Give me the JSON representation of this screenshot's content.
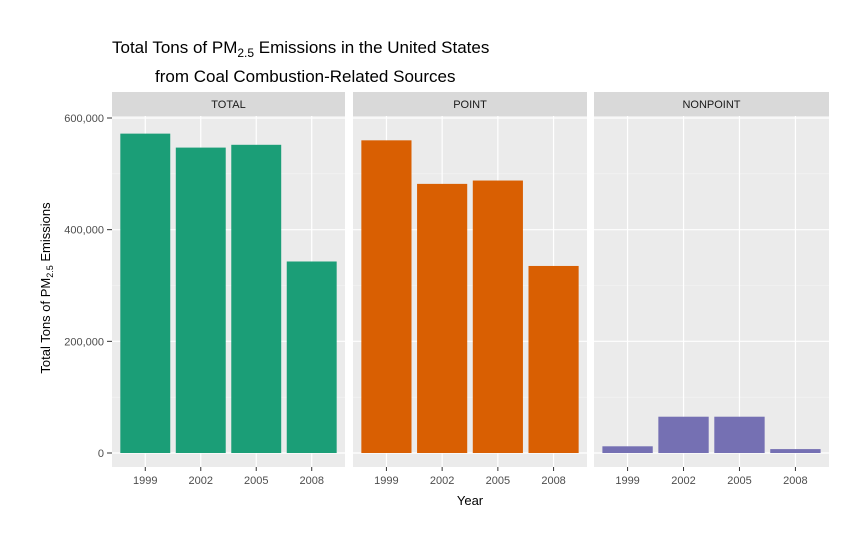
{
  "chart_data": {
    "type": "bar",
    "title_line1_prefix": "Total Tons of PM",
    "title_line1_sub": "2.5",
    "title_line1_suffix": " Emissions in the United States",
    "title_line2": "from Coal Combustion-Related Sources",
    "xlabel": "Year",
    "ylabel_prefix": "Total Tons of PM",
    "ylabel_sub": "2.5",
    "ylabel_suffix": " Emissions",
    "ylim": [
      0,
      620000
    ],
    "yticks": [
      0,
      200000,
      400000,
      600000
    ],
    "ytick_labels": [
      "0",
      "200,000",
      "400,000",
      "600,000"
    ],
    "grid": true,
    "facet_labels_position": "top",
    "categories": [
      "1999",
      "2002",
      "2005",
      "2008"
    ],
    "panels": [
      {
        "label": "TOTAL",
        "color": "#1b9e77",
        "values": [
          572000,
          547000,
          552000,
          343000
        ]
      },
      {
        "label": "POINT",
        "color": "#d95f02",
        "values": [
          560000,
          482000,
          488000,
          335000
        ]
      },
      {
        "label": "NONPOINT",
        "color": "#7570b3",
        "values": [
          12000,
          65000,
          65000,
          7000
        ]
      }
    ]
  }
}
